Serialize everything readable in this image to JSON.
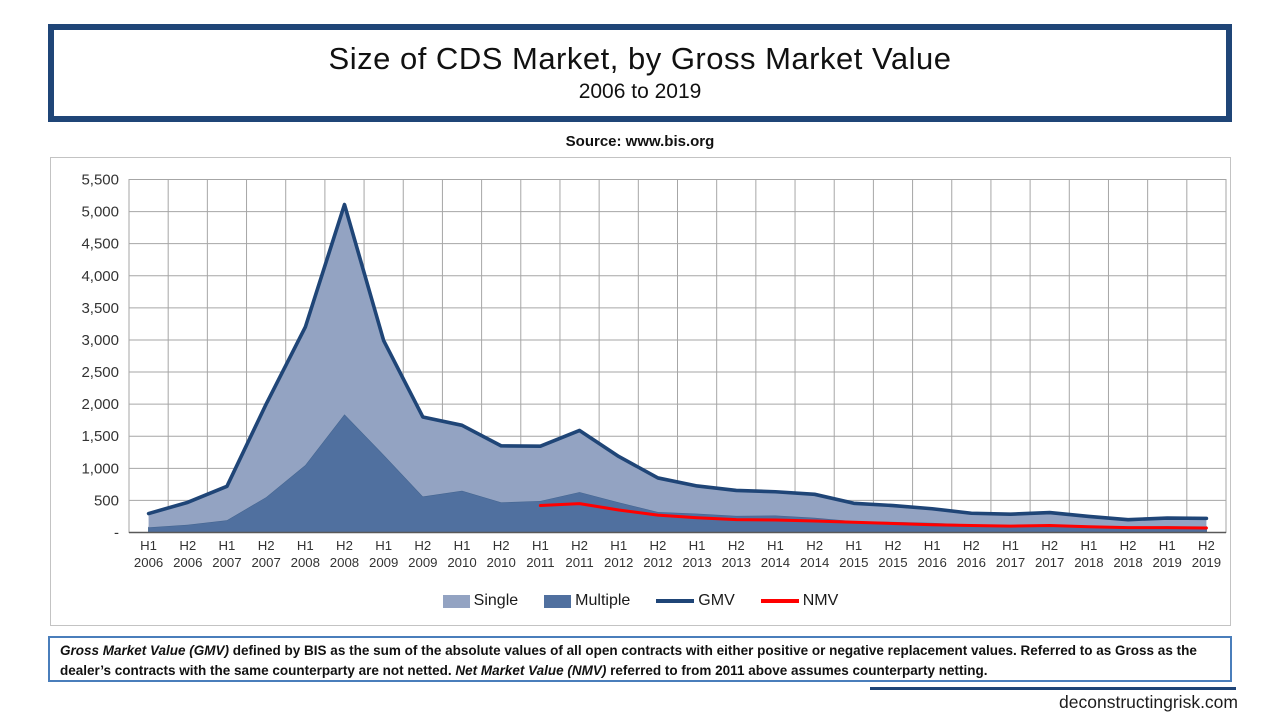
{
  "header": {
    "title": "Size of CDS Market, by Gross Market Value",
    "subtitle": "2006 to 2019",
    "source": "Source: www.bis.org"
  },
  "chart_data": {
    "type": "area",
    "title": "Size of CDS Market, by Gross Market Value",
    "subtitle": "2006 to 2019",
    "xlabel": "",
    "ylabel": "",
    "ylim": [
      0,
      5500
    ],
    "ytick_step": 500,
    "yticks": [
      "-",
      "500",
      "1,000",
      "1,500",
      "2,000",
      "2,500",
      "3,000",
      "3,500",
      "4,000",
      "4,500",
      "5,000",
      "5,500"
    ],
    "grid": true,
    "legend_position": "bottom",
    "categories": [
      "H1 2006",
      "H2 2006",
      "H1 2007",
      "H2 2007",
      "H1 2008",
      "H2 2008",
      "H1 2009",
      "H2 2009",
      "H1 2010",
      "H2 2010",
      "H1 2011",
      "H2 2011",
      "H1 2012",
      "H2 2012",
      "H1 2013",
      "H2 2013",
      "H1 2014",
      "H2 2014",
      "H1 2015",
      "H2 2015",
      "H1 2016",
      "H2 2016",
      "H1 2017",
      "H2 2017",
      "H1 2018",
      "H2 2018",
      "H1 2019",
      "H2 2019"
    ],
    "stack_order_bottom_to_top": [
      "Multiple",
      "Single"
    ],
    "series": [
      {
        "name": "Single",
        "kind": "stacked-area",
        "color": "#93A3C2",
        "values": [
          215,
          350,
          530,
          1450,
          2150,
          3270,
          1780,
          1240,
          1020,
          880,
          855,
          960,
          715,
          530,
          430,
          395,
          370,
          365,
          280,
          255,
          220,
          175,
          170,
          185,
          150,
          110,
          130,
          130
        ]
      },
      {
        "name": "Multiple",
        "kind": "stacked-area",
        "color": "#50709F",
        "values": [
          80,
          120,
          190,
          550,
          1050,
          1840,
          1210,
          560,
          650,
          470,
          490,
          630,
          470,
          320,
          295,
          260,
          265,
          230,
          175,
          165,
          150,
          125,
          115,
          125,
          100,
          90,
          95,
          90
        ]
      },
      {
        "name": "GMV",
        "kind": "line",
        "color": "#1F4577",
        "values": [
          295,
          470,
          720,
          2000,
          3200,
          5110,
          2990,
          1800,
          1670,
          1350,
          1345,
          1590,
          1185,
          850,
          725,
          655,
          635,
          595,
          455,
          420,
          370,
          300,
          285,
          310,
          250,
          200,
          225,
          220
        ]
      },
      {
        "name": "NMV",
        "kind": "line",
        "color": "#FF0000",
        "values": [
          null,
          null,
          null,
          null,
          null,
          null,
          null,
          null,
          null,
          null,
          420,
          450,
          350,
          270,
          230,
          200,
          195,
          180,
          160,
          140,
          120,
          110,
          100,
          110,
          90,
          75,
          75,
          70
        ]
      }
    ],
    "colors": {
      "gridline": "#A6A6A6",
      "axis_baseline": "#595959",
      "tick_text": "#333333"
    }
  },
  "footnote": {
    "segments": [
      {
        "text": "Gross Market Value (GMV)",
        "italic": true
      },
      {
        "text": " defined by BIS as the sum of the absolute values of all open contracts with either positive or negative replacement values. Referred to as Gross as the dealer’s contracts with the same counterparty are not netted. ",
        "italic": false
      },
      {
        "text": "Net Market Value (NMV)",
        "italic": true
      },
      {
        "text": " referred to from 2011 above assumes counterparty netting.",
        "italic": false
      }
    ]
  },
  "footer": {
    "website": "deconstructingrisk.com"
  }
}
